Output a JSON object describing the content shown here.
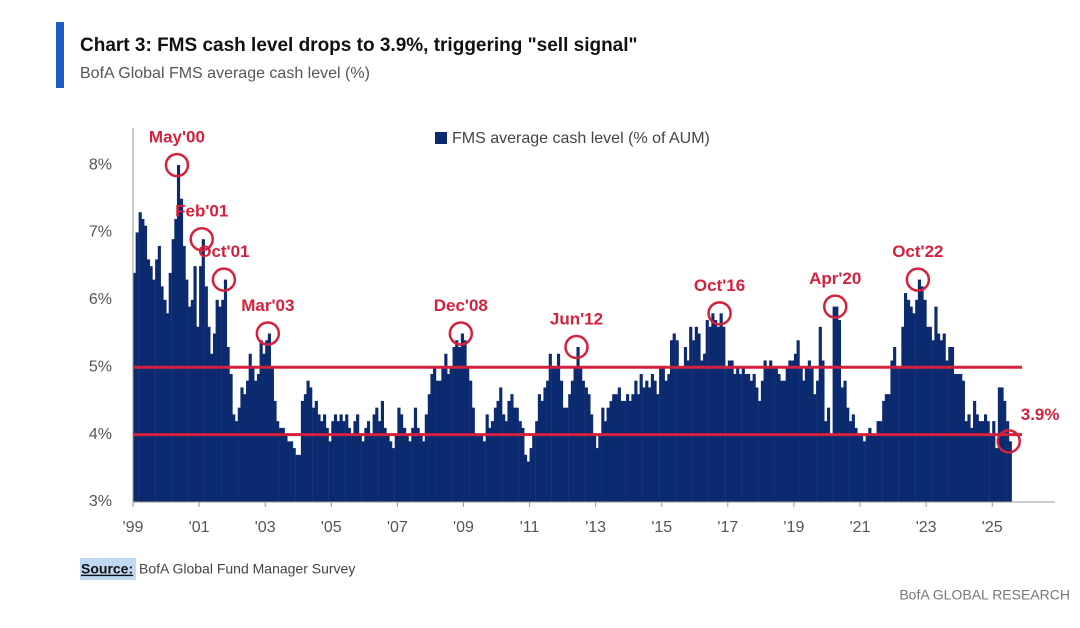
{
  "title": "Chart 3: FMS cash level drops to 3.9%, triggering \"sell signal\"",
  "subtitle": "BofA Global FMS average cash level (%)",
  "source_label": "Source:",
  "source": "BofA Global Fund Manager Survey",
  "footer": "BofA GLOBAL RESEARCH",
  "chart_data": {
    "type": "bar",
    "xlim": [
      1999,
      2026.9
    ],
    "xticks": [
      {
        "value": 1999,
        "label": "'99"
      },
      {
        "value": 2001,
        "label": "'01"
      },
      {
        "value": 2003,
        "label": "'03"
      },
      {
        "value": 2005,
        "label": "'05"
      },
      {
        "value": 2007,
        "label": "'07"
      },
      {
        "value": 2009,
        "label": "'09"
      },
      {
        "value": 2011,
        "label": "'11"
      },
      {
        "value": 2013,
        "label": "'13"
      },
      {
        "value": 2015,
        "label": "'15"
      },
      {
        "value": 2017,
        "label": "'17"
      },
      {
        "value": 2019,
        "label": "'19"
      },
      {
        "value": 2021,
        "label": "'21"
      },
      {
        "value": 2023,
        "label": "'23"
      },
      {
        "value": 2025,
        "label": "'25"
      }
    ],
    "ylim": [
      3,
      8.55
    ],
    "yticks": [
      {
        "value": 3,
        "label": "3%"
      },
      {
        "value": 4,
        "label": "4%"
      },
      {
        "value": 5,
        "label": "5%"
      },
      {
        "value": 6,
        "label": "6%"
      },
      {
        "value": 7,
        "label": "7%"
      },
      {
        "value": 8,
        "label": "8%"
      }
    ],
    "reference_lines": [
      5,
      4
    ],
    "reference_color": "#d4213d",
    "legend": "top",
    "series": [
      {
        "name": "FMS average cash level (% of AUM)",
        "color": "#0b2a6f",
        "x": [
          1999,
          1999.08,
          1999.17,
          1999.25,
          1999.33,
          1999.42,
          1999.5,
          1999.58,
          1999.67,
          1999.75,
          1999.83,
          1999.92,
          2000,
          2000.08,
          2000.17,
          2000.25,
          2000.33,
          2000.42,
          2000.5,
          2000.58,
          2000.67,
          2000.75,
          2000.83,
          2000.92,
          2001,
          2001.08,
          2001.17,
          2001.25,
          2001.33,
          2001.42,
          2001.5,
          2001.58,
          2001.67,
          2001.75,
          2001.83,
          2001.92,
          2002,
          2002.08,
          2002.17,
          2002.25,
          2002.33,
          2002.42,
          2002.5,
          2002.58,
          2002.67,
          2002.75,
          2002.83,
          2002.92,
          2003,
          2003.08,
          2003.17,
          2003.25,
          2003.33,
          2003.42,
          2003.5,
          2003.58,
          2003.67,
          2003.75,
          2003.83,
          2003.92,
          2004,
          2004.08,
          2004.17,
          2004.25,
          2004.33,
          2004.42,
          2004.5,
          2004.58,
          2004.67,
          2004.75,
          2004.83,
          2004.92,
          2005,
          2005.08,
          2005.17,
          2005.25,
          2005.33,
          2005.42,
          2005.5,
          2005.58,
          2005.67,
          2005.75,
          2005.83,
          2005.92,
          2006,
          2006.08,
          2006.17,
          2006.25,
          2006.33,
          2006.42,
          2006.5,
          2006.58,
          2006.67,
          2006.75,
          2006.83,
          2006.92,
          2007,
          2007.08,
          2007.17,
          2007.25,
          2007.33,
          2007.42,
          2007.5,
          2007.58,
          2007.67,
          2007.75,
          2007.83,
          2007.92,
          2008,
          2008.08,
          2008.17,
          2008.25,
          2008.33,
          2008.42,
          2008.5,
          2008.58,
          2008.67,
          2008.75,
          2008.83,
          2008.92,
          2009,
          2009.08,
          2009.17,
          2009.25,
          2009.33,
          2009.42,
          2009.5,
          2009.58,
          2009.67,
          2009.75,
          2009.83,
          2009.92,
          2010,
          2010.08,
          2010.17,
          2010.25,
          2010.33,
          2010.42,
          2010.5,
          2010.58,
          2010.67,
          2010.75,
          2010.83,
          2010.92,
          2011,
          2011.08,
          2011.17,
          2011.25,
          2011.33,
          2011.42,
          2011.5,
          2011.58,
          2011.67,
          2011.75,
          2011.83,
          2011.92,
          2012,
          2012.08,
          2012.17,
          2012.25,
          2012.33,
          2012.42,
          2012.5,
          2012.58,
          2012.67,
          2012.75,
          2012.83,
          2012.92,
          2013,
          2013.08,
          2013.17,
          2013.25,
          2013.33,
          2013.42,
          2013.5,
          2013.58,
          2013.67,
          2013.75,
          2013.83,
          2013.92,
          2014,
          2014.08,
          2014.17,
          2014.25,
          2014.33,
          2014.42,
          2014.5,
          2014.58,
          2014.67,
          2014.75,
          2014.83,
          2014.92,
          2015,
          2015.08,
          2015.17,
          2015.25,
          2015.33,
          2015.42,
          2015.5,
          2015.58,
          2015.67,
          2015.75,
          2015.83,
          2015.92,
          2016,
          2016.08,
          2016.17,
          2016.25,
          2016.33,
          2016.42,
          2016.5,
          2016.58,
          2016.67,
          2016.75,
          2016.83,
          2016.92,
          2017,
          2017.08,
          2017.17,
          2017.25,
          2017.33,
          2017.42,
          2017.5,
          2017.58,
          2017.67,
          2017.75,
          2017.83,
          2017.92,
          2018,
          2018.08,
          2018.17,
          2018.25,
          2018.33,
          2018.42,
          2018.5,
          2018.58,
          2018.67,
          2018.75,
          2018.83,
          2018.92,
          2019,
          2019.08,
          2019.17,
          2019.25,
          2019.33,
          2019.42,
          2019.5,
          2019.58,
          2019.67,
          2019.75,
          2019.83,
          2019.92,
          2020,
          2020.08,
          2020.17,
          2020.25,
          2020.33,
          2020.42,
          2020.5,
          2020.58,
          2020.67,
          2020.75,
          2020.83,
          2020.92,
          2021,
          2021.08,
          2021.17,
          2021.25,
          2021.33,
          2021.42,
          2021.5,
          2021.58,
          2021.67,
          2021.75,
          2021.83,
          2021.92,
          2022,
          2022.08,
          2022.17,
          2022.25,
          2022.33,
          2022.42,
          2022.5,
          2022.58,
          2022.67,
          2022.75,
          2022.83,
          2022.92,
          2023,
          2023.08,
          2023.17,
          2023.25,
          2023.33,
          2023.42,
          2023.5,
          2023.58,
          2023.67,
          2023.75,
          2023.83,
          2023.92,
          2024,
          2024.08,
          2024.17,
          2024.25,
          2024.33,
          2024.42,
          2024.5,
          2024.58,
          2024.67,
          2024.75,
          2024.83,
          2024.92,
          2025,
          2025.08,
          2025.17,
          2025.25,
          2025.33,
          2025.42,
          2025.5
        ],
        "values": [
          6.4,
          7.0,
          7.3,
          7.2,
          7.1,
          6.6,
          6.5,
          6.3,
          6.6,
          6.8,
          6.2,
          6.0,
          5.8,
          6.4,
          6.9,
          7.2,
          8.0,
          7.5,
          6.8,
          6.3,
          5.9,
          6.0,
          6.5,
          5.6,
          6.5,
          6.9,
          6.2,
          5.6,
          5.2,
          5.5,
          6.0,
          5.9,
          6.0,
          6.3,
          5.3,
          4.9,
          4.3,
          4.2,
          4.4,
          4.7,
          4.6,
          4.8,
          5.2,
          5.0,
          4.8,
          4.9,
          5.4,
          5.2,
          5.4,
          5.5,
          5.0,
          4.5,
          4.2,
          4.1,
          4.1,
          4.0,
          3.9,
          3.9,
          3.8,
          3.7,
          3.7,
          4.5,
          4.6,
          4.8,
          4.7,
          4.4,
          4.5,
          4.3,
          4.2,
          4.3,
          4.1,
          3.9,
          4.2,
          4.3,
          4.2,
          4.3,
          4.2,
          4.3,
          4.1,
          4.0,
          4.2,
          4.3,
          4.0,
          3.9,
          4.1,
          4.2,
          4.0,
          4.3,
          4.4,
          4.2,
          4.5,
          4.1,
          4.0,
          3.9,
          3.8,
          4.0,
          4.4,
          4.3,
          4.1,
          4.0,
          3.9,
          4.1,
          4.4,
          4.1,
          4.0,
          3.9,
          4.3,
          4.6,
          4.9,
          5.0,
          4.8,
          4.8,
          5.0,
          5.2,
          4.9,
          5.0,
          5.3,
          5.4,
          5.3,
          5.5,
          5.4,
          5.0,
          4.8,
          4.4,
          4.0,
          4.0,
          4.0,
          3.9,
          4.3,
          4.1,
          4.2,
          4.4,
          4.5,
          4.7,
          4.3,
          4.2,
          4.5,
          4.6,
          4.4,
          4.4,
          4.2,
          4.1,
          3.7,
          3.6,
          3.8,
          4.0,
          4.2,
          4.6,
          4.5,
          4.7,
          4.8,
          5.2,
          5.0,
          5.0,
          5.2,
          4.8,
          4.4,
          4.4,
          4.6,
          4.8,
          5.0,
          5.3,
          5.0,
          4.8,
          4.7,
          4.6,
          4.3,
          4.0,
          3.8,
          4.0,
          4.4,
          4.2,
          4.4,
          4.5,
          4.6,
          4.6,
          4.7,
          4.5,
          4.5,
          4.6,
          4.5,
          4.6,
          4.8,
          4.6,
          4.9,
          4.7,
          4.8,
          4.7,
          4.9,
          4.8,
          4.6,
          5.0,
          5.0,
          4.8,
          4.9,
          5.4,
          5.5,
          5.4,
          5.0,
          5.0,
          5.3,
          5.1,
          5.6,
          5.4,
          5.6,
          5.5,
          5.1,
          5.2,
          5.7,
          5.6,
          5.8,
          5.7,
          5.6,
          5.8,
          5.6,
          5.0,
          5.1,
          5.1,
          4.9,
          5.0,
          4.9,
          5.0,
          4.9,
          4.9,
          4.8,
          4.9,
          4.7,
          4.5,
          4.8,
          5.1,
          5.0,
          5.1,
          5.0,
          5.0,
          4.9,
          4.8,
          4.8,
          5.0,
          5.1,
          5.1,
          5.2,
          5.4,
          5.0,
          4.8,
          5.0,
          5.1,
          5.0,
          4.6,
          4.8,
          5.6,
          5.1,
          4.2,
          4.4,
          4.0,
          5.9,
          5.9,
          5.7,
          4.7,
          4.8,
          4.4,
          4.2,
          4.3,
          4.1,
          4.0,
          4.0,
          3.9,
          4.0,
          4.1,
          4.0,
          4.0,
          4.2,
          4.2,
          4.5,
          4.6,
          4.6,
          5.1,
          5.3,
          5.0,
          5.0,
          5.6,
          6.1,
          6.0,
          5.9,
          5.8,
          6.0,
          6.3,
          6.2,
          6.0,
          5.6,
          5.6,
          5.4,
          5.9,
          5.5,
          5.4,
          5.5,
          5.1,
          5.3,
          5.3,
          4.9,
          4.9,
          4.9,
          4.8,
          4.2,
          4.3,
          4.1,
          4.5,
          4.3,
          4.2,
          4.2,
          4.3,
          4.2,
          4.0,
          4.2,
          3.8,
          4.7,
          4.7,
          4.5,
          4.2,
          3.9
        ]
      }
    ],
    "annotations": [
      {
        "label": "May'00",
        "x": 2000.33,
        "y": 8.0
      },
      {
        "label": "Feb'01",
        "x": 2001.08,
        "y": 6.9
      },
      {
        "label": "Oct'01",
        "x": 2001.75,
        "y": 6.3
      },
      {
        "label": "Mar'03",
        "x": 2003.08,
        "y": 5.5
      },
      {
        "label": "Dec'08",
        "x": 2008.92,
        "y": 5.5
      },
      {
        "label": "Jun'12",
        "x": 2012.42,
        "y": 5.3
      },
      {
        "label": "Oct'16",
        "x": 2016.75,
        "y": 5.8
      },
      {
        "label": "Apr'20",
        "x": 2020.25,
        "y": 5.9
      },
      {
        "label": "Oct'22",
        "x": 2022.75,
        "y": 6.3
      },
      {
        "label": "3.9%",
        "x": 2025.5,
        "y": 3.9
      }
    ]
  }
}
